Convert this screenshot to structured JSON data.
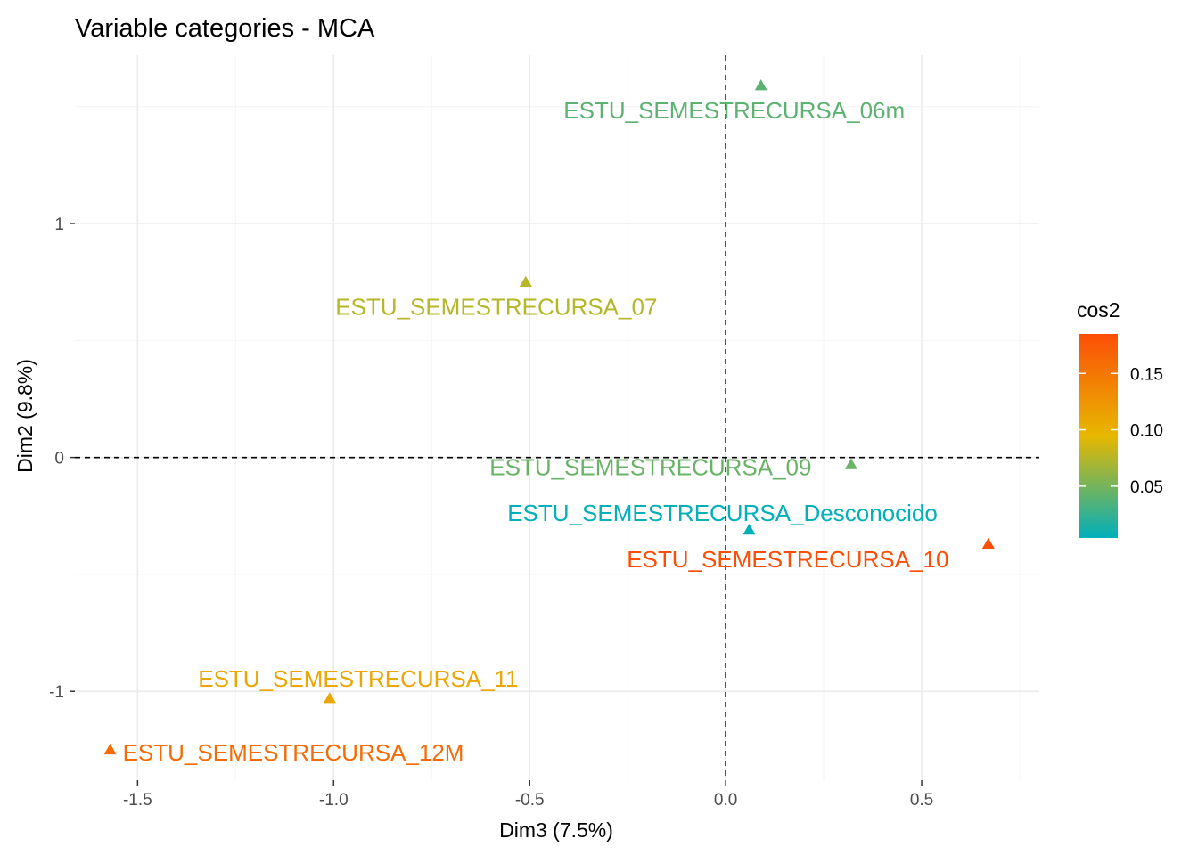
{
  "chart_data": {
    "type": "scatter",
    "title": "Variable categories - MCA",
    "xlabel": "Dim3 (7.5%)",
    "ylabel": "Dim2 (9.8%)",
    "xlim": [
      -1.66,
      0.8
    ],
    "ylim": [
      -1.38,
      1.72
    ],
    "x_ticks": [
      -1.5,
      -1.0,
      -0.5,
      0.0,
      0.5
    ],
    "x_tick_labels": [
      "-1.5",
      "-1.0",
      "-0.5",
      "0.0",
      "0.5"
    ],
    "y_ticks": [
      -1,
      0,
      1
    ],
    "y_tick_labels": [
      "-1",
      "0",
      "1"
    ],
    "grid": true,
    "reference_lines": {
      "x": 0,
      "y": 0,
      "style": "dashed"
    },
    "marker": "triangle",
    "points": [
      {
        "label": "ESTU_SEMESTRECURSA_06m",
        "x": 0.09,
        "y": 1.59,
        "cos2": 0.04
      },
      {
        "label": "ESTU_SEMESTRECURSA_07",
        "x": -0.51,
        "y": 0.75,
        "cos2": 0.075
      },
      {
        "label": "ESTU_SEMESTRECURSA_09",
        "x": 0.32,
        "y": -0.03,
        "cos2": 0.045
      },
      {
        "label": "ESTU_SEMESTRECURSA_Desconocido",
        "x": 0.06,
        "y": -0.31,
        "cos2": 0.005
      },
      {
        "label": "ESTU_SEMESTRECURSA_10",
        "x": 0.67,
        "y": -0.37,
        "cos2": 0.185
      },
      {
        "label": "ESTU_SEMESTRECURSA_11",
        "x": -1.01,
        "y": -1.03,
        "cos2": 0.11
      },
      {
        "label": "ESTU_SEMESTRECURSA_12M",
        "x": -1.57,
        "y": -1.25,
        "cos2": 0.16
      }
    ],
    "legend": {
      "title": "cos2",
      "placement": "right",
      "range": [
        0.004,
        0.185
      ],
      "ticks": [
        0.05,
        0.1,
        0.15
      ],
      "tick_labels": [
        "0.05",
        "0.10",
        "0.15"
      ],
      "gradient": [
        "#00AFBB",
        "#E7B800",
        "#FC4E07"
      ]
    }
  }
}
